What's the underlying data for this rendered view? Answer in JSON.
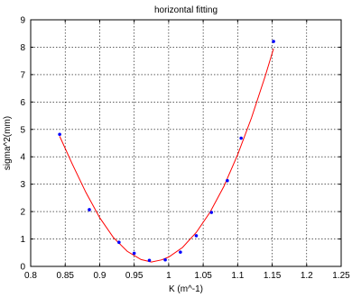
{
  "chart_data": {
    "type": "scatter",
    "title": "horizontal fitting",
    "xlabel": "K (m^-1)",
    "ylabel": "sigma^2(mm)",
    "xlim": [
      0.8,
      1.25
    ],
    "ylim": [
      0,
      9
    ],
    "grid": true,
    "x_ticks": [
      "0.8",
      "0.85",
      "0.9",
      "0.95",
      "1",
      "1.05",
      "1.1",
      "1.15",
      "1.2",
      "1.25"
    ],
    "y_ticks": [
      "0",
      "1",
      "2",
      "3",
      "4",
      "5",
      "6",
      "7",
      "8",
      "9"
    ],
    "series": [
      {
        "kind": "points",
        "color": "#0000ff",
        "points": [
          {
            "x": 0.842,
            "y": 4.82
          },
          {
            "x": 0.885,
            "y": 2.07
          },
          {
            "x": 0.928,
            "y": 0.88
          },
          {
            "x": 0.95,
            "y": 0.48
          },
          {
            "x": 0.972,
            "y": 0.22
          },
          {
            "x": 0.995,
            "y": 0.24
          },
          {
            "x": 1.017,
            "y": 0.52
          },
          {
            "x": 1.04,
            "y": 1.12
          },
          {
            "x": 1.062,
            "y": 1.97
          },
          {
            "x": 1.085,
            "y": 3.13
          },
          {
            "x": 1.105,
            "y": 4.68
          },
          {
            "x": 1.152,
            "y": 8.21
          }
        ]
      },
      {
        "kind": "fit-curve",
        "color": "#ff0000",
        "points": [
          {
            "x": 0.842,
            "y": 4.75
          },
          {
            "x": 0.86,
            "y": 3.75
          },
          {
            "x": 0.88,
            "y": 2.7
          },
          {
            "x": 0.9,
            "y": 1.78
          },
          {
            "x": 0.92,
            "y": 1.05
          },
          {
            "x": 0.94,
            "y": 0.55
          },
          {
            "x": 0.96,
            "y": 0.25
          },
          {
            "x": 0.975,
            "y": 0.16
          },
          {
            "x": 0.99,
            "y": 0.24
          },
          {
            "x": 1.0,
            "y": 0.34
          },
          {
            "x": 1.02,
            "y": 0.69
          },
          {
            "x": 1.04,
            "y": 1.24
          },
          {
            "x": 1.06,
            "y": 1.98
          },
          {
            "x": 1.08,
            "y": 2.92
          },
          {
            "x": 1.1,
            "y": 4.08
          },
          {
            "x": 1.12,
            "y": 5.42
          },
          {
            "x": 1.14,
            "y": 6.95
          },
          {
            "x": 1.152,
            "y": 7.95
          }
        ]
      }
    ]
  }
}
